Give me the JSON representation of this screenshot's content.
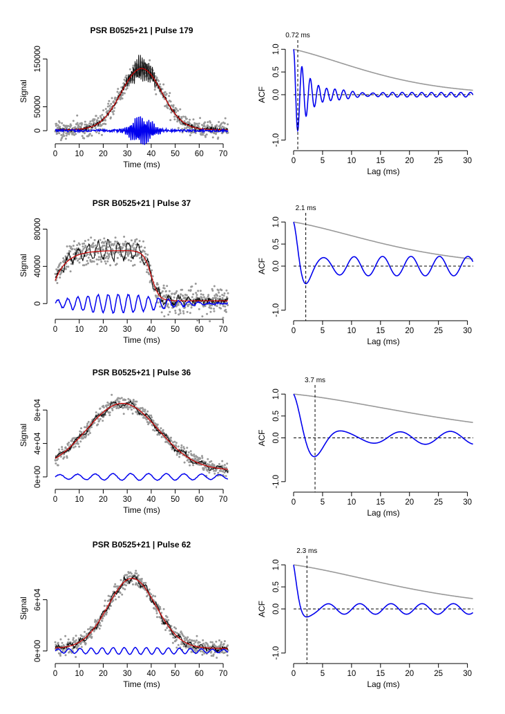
{
  "colors": {
    "scatter": "#999999",
    "raw": "#000000",
    "smooth": "#cc0000",
    "residual": "#0000ee",
    "acf_residual": "#0000ee",
    "acf_raw": "#999999",
    "axis": "#000000"
  },
  "chart_data": [
    {
      "type": "line",
      "title": "PSR B0525+21 | Pulse 179",
      "xlabel": "Time (ms)",
      "ylabel": "Signal",
      "xlim": [
        0,
        72
      ],
      "ylim": [
        -10000,
        175000
      ],
      "x_ticks": [
        0,
        10,
        20,
        30,
        40,
        50,
        60,
        70
      ],
      "x_tick_labels": [
        "0",
        "10",
        "20",
        "30",
        "40",
        "50",
        "60",
        "70"
      ],
      "y_ticks": [
        0,
        50000,
        150000
      ],
      "y_tick_labels": [
        "0",
        "50000",
        "150000"
      ],
      "profile": {
        "shape": "gauss",
        "center": 36,
        "width": 8.5,
        "peak": 128000,
        "base": 2000
      },
      "residual": {
        "offset": 0,
        "amp": 33000,
        "period": 0.72,
        "envelope_center": 36,
        "envelope_width": 4
      },
      "scatter_noise": 9000,
      "series": []
    },
    {
      "type": "line",
      "title": "",
      "xlabel": "Lag (ms)",
      "ylabel": "ACF",
      "xlim": [
        0,
        31
      ],
      "ylim": [
        -1.05,
        1.05
      ],
      "x_ticks": [
        0,
        5,
        10,
        15,
        20,
        25,
        30
      ],
      "x_tick_labels": [
        "0",
        "5",
        "10",
        "15",
        "20",
        "25",
        "30"
      ],
      "y_ticks": [
        -1.0,
        0.0,
        0.5,
        1.0
      ],
      "y_tick_labels": [
        "-1.0",
        "0.0",
        "0.5",
        "1.0"
      ],
      "acf": {
        "period": 1.44,
        "decay": 3.0,
        "floor_amp": 0.05,
        "raw_decay_to": 0.13
      },
      "marker": {
        "lag": 0.72,
        "label": "0.72 ms"
      },
      "series": []
    },
    {
      "type": "line",
      "title": "PSR B0525+21 | Pulse 37",
      "xlabel": "Time (ms)",
      "ylabel": "Signal",
      "xlim": [
        0,
        72
      ],
      "ylim": [
        -8000,
        90000
      ],
      "x_ticks": [
        0,
        10,
        20,
        30,
        40,
        50,
        60,
        70
      ],
      "x_tick_labels": [
        "0",
        "10",
        "20",
        "30",
        "40",
        "50",
        "60",
        "70"
      ],
      "y_ticks": [
        0,
        40000,
        80000
      ],
      "y_tick_labels": [
        "0",
        "40000",
        "80000"
      ],
      "profile": {
        "shape": "plateau",
        "start": 0,
        "end": 44,
        "plateau": 57000,
        "base": 3000,
        "start_level": 25000
      },
      "residual": {
        "offset": 0,
        "amp": 10000,
        "period": 4.2,
        "envelope_center": 25,
        "envelope_width": 18
      },
      "scatter_noise": 7000,
      "series": []
    },
    {
      "type": "line",
      "title": "",
      "xlabel": "Lag (ms)",
      "ylabel": "ACF",
      "xlim": [
        0,
        31
      ],
      "ylim": [
        -1.05,
        1.05
      ],
      "x_ticks": [
        0,
        5,
        10,
        15,
        20,
        25,
        30
      ],
      "x_tick_labels": [
        "0",
        "5",
        "10",
        "15",
        "20",
        "25",
        "30"
      ],
      "y_ticks": [
        -1.0,
        0.0,
        0.5,
        1.0
      ],
      "y_tick_labels": [
        "-1.0",
        "0.0",
        "0.5",
        "1.0"
      ],
      "acf": {
        "period": 4.2,
        "decay": 2.0,
        "floor_amp": 0.22,
        "raw_decay_to": 0.2
      },
      "marker": {
        "lag": 2.1,
        "label": "2.1 ms"
      },
      "series": []
    },
    {
      "type": "line",
      "title": "PSR B0525+21 | Pulse 36",
      "xlabel": "Time (ms)",
      "ylabel": "Signal",
      "xlim": [
        0,
        72
      ],
      "ylim": [
        -5000,
        105000
      ],
      "x_ticks": [
        0,
        10,
        20,
        30,
        40,
        50,
        60,
        70
      ],
      "x_tick_labels": [
        "0",
        "10",
        "20",
        "30",
        "40",
        "50",
        "60",
        "70"
      ],
      "y_ticks": [
        0,
        40000,
        80000
      ],
      "y_tick_labels": [
        "0e+00",
        "4e+04",
        "8e+04"
      ],
      "profile": {
        "shape": "gauss",
        "center": 28,
        "width": 15,
        "peak": 80000,
        "base": 8000
      },
      "residual": {
        "offset": 0,
        "amp": 4000,
        "period": 7.4,
        "envelope_center": 36,
        "envelope_width": 40
      },
      "scatter_noise": 4000,
      "series": []
    },
    {
      "type": "line",
      "title": "",
      "xlabel": "Lag (ms)",
      "ylabel": "ACF",
      "xlim": [
        0,
        31
      ],
      "ylim": [
        -1.05,
        1.05
      ],
      "x_ticks": [
        0,
        5,
        10,
        15,
        20,
        25,
        30
      ],
      "x_tick_labels": [
        "0",
        "5",
        "10",
        "15",
        "20",
        "25",
        "30"
      ],
      "y_ticks": [
        -1.0,
        0.0,
        0.5,
        1.0
      ],
      "y_tick_labels": [
        "-1.0",
        "0.0",
        "0.5",
        "1.0"
      ],
      "acf": {
        "period": 7.4,
        "decay": 4.0,
        "floor_amp": 0.15,
        "raw_decay_to": 0.4
      },
      "marker": {
        "lag": 3.7,
        "label": "3.7 ms"
      },
      "series": []
    },
    {
      "type": "line",
      "title": "PSR B0525+21 | Pulse 62",
      "xlabel": "Time (ms)",
      "ylabel": "Signal",
      "xlim": [
        0,
        72
      ],
      "ylim": [
        -5000,
        105000
      ],
      "x_ticks": [
        0,
        10,
        20,
        30,
        40,
        50,
        60,
        70
      ],
      "x_tick_labels": [
        "0",
        "10",
        "20",
        "30",
        "40",
        "50",
        "60",
        "70"
      ],
      "y_ticks": [
        0,
        60000
      ],
      "y_tick_labels": [
        "0e+00",
        "6e+04"
      ],
      "profile": {
        "shape": "gauss",
        "center": 32,
        "width": 10,
        "peak": 82000,
        "base": 3000
      },
      "residual": {
        "offset": 0,
        "amp": 4000,
        "period": 4.6,
        "envelope_center": 33,
        "envelope_width": 30
      },
      "scatter_noise": 4500,
      "series": []
    },
    {
      "type": "line",
      "title": "",
      "xlabel": "Lag (ms)",
      "ylabel": "ACF",
      "xlim": [
        0,
        31
      ],
      "ylim": [
        -1.05,
        1.05
      ],
      "x_ticks": [
        0,
        5,
        10,
        15,
        20,
        25,
        30
      ],
      "x_tick_labels": [
        "0",
        "5",
        "10",
        "15",
        "20",
        "25",
        "30"
      ],
      "y_ticks": [
        -1.0,
        0.0,
        0.5,
        1.0
      ],
      "y_tick_labels": [
        "-1.0",
        "0.0",
        "0.5",
        "1.0"
      ],
      "acf": {
        "period": 4.6,
        "decay": 1.2,
        "floor_amp": 0.12,
        "raw_decay_to": 0.28
      },
      "marker": {
        "lag": 2.3,
        "label": "2.3 ms"
      },
      "series": []
    }
  ]
}
